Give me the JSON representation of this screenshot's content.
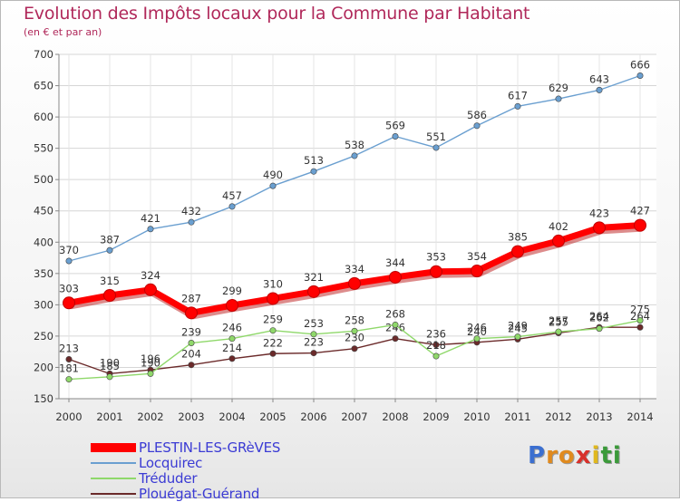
{
  "chart_data": {
    "type": "line",
    "title": "Evolution des Impôts locaux pour la Commune par Habitant",
    "subtitle": "(en € et par an)",
    "x": [
      "2000",
      "2001",
      "2002",
      "2003",
      "2004",
      "2005",
      "2006",
      "2007",
      "2008",
      "2009",
      "2010",
      "2011",
      "2012",
      "2013",
      "2014"
    ],
    "yticks": [
      "150",
      "200",
      "250",
      "300",
      "350",
      "400",
      "450",
      "500",
      "550",
      "600",
      "650",
      "700"
    ],
    "ylim": [
      150,
      700
    ],
    "series": [
      {
        "name": "PLESTIN-LES-GRèVES",
        "color": "#ff0000",
        "values": [
          303,
          315,
          324,
          287,
          299,
          310,
          321,
          334,
          344,
          353,
          354,
          385,
          402,
          423,
          427
        ]
      },
      {
        "name": "Locquirec",
        "color": "#6a9fd0",
        "values": [
          370,
          387,
          421,
          432,
          457,
          490,
          513,
          538,
          569,
          551,
          586,
          617,
          629,
          643,
          666
        ]
      },
      {
        "name": "Tréduder",
        "color": "#8fd86a",
        "values": [
          181,
          185,
          190,
          239,
          246,
          259,
          253,
          258,
          268,
          218,
          246,
          249,
          257,
          262,
          275
        ]
      },
      {
        "name": "Plouégat-Guérand",
        "color": "#6b2a2a",
        "values": [
          213,
          190,
          196,
          204,
          214,
          222,
          223,
          230,
          246,
          236,
          240,
          245,
          255,
          264,
          264
        ]
      }
    ]
  },
  "logo": {
    "letters": [
      "P",
      "r",
      "o",
      "x",
      "i",
      "t",
      "i"
    ],
    "colors": [
      "#3b6fd0",
      "#e08a1e",
      "#e08a1e",
      "#d8302a",
      "#e0b81e",
      "#3b9a3a",
      "#3b9a3a"
    ]
  }
}
